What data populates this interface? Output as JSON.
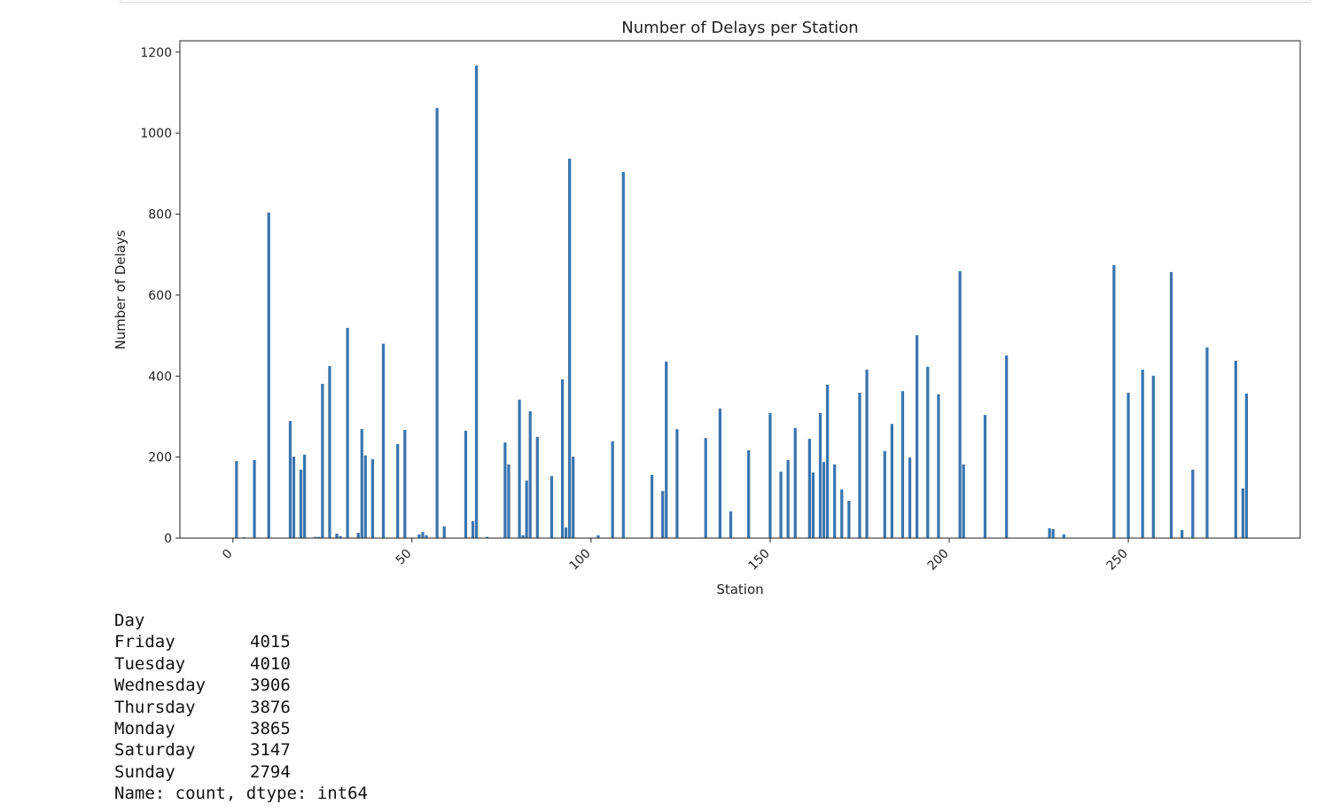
{
  "chart_data": {
    "type": "bar",
    "title": "Number of Delays per Station",
    "xlabel": "Station",
    "ylabel": "Number of Delays",
    "color": "#3a75af",
    "bar_width": 0.8,
    "x": [
      1,
      3,
      6,
      10,
      16,
      17,
      19,
      20,
      23,
      24,
      27,
      25,
      29,
      30,
      32,
      35,
      36,
      37,
      39,
      42,
      46,
      48,
      52,
      53,
      54,
      57,
      59,
      65,
      67,
      68,
      71,
      76,
      77,
      80,
      81,
      82,
      83,
      85,
      89,
      92,
      93,
      94,
      95,
      102,
      106,
      109,
      117,
      120,
      121,
      124,
      132,
      136,
      139,
      144,
      150,
      153,
      155,
      157,
      161,
      162,
      164,
      165,
      166,
      168,
      170,
      172,
      175,
      177,
      182,
      184,
      187,
      189,
      191,
      194,
      197,
      203,
      204,
      210,
      216,
      228,
      229,
      232,
      246,
      250,
      254,
      257,
      262,
      265,
      268,
      272,
      280,
      282,
      283
    ],
    "values": [
      190,
      2,
      193,
      804,
      289,
      201,
      169,
      206,
      3,
      3,
      425,
      381,
      11,
      5,
      519,
      13,
      269,
      204,
      195,
      480,
      232,
      267,
      9,
      15,
      7,
      1062,
      29,
      265,
      42,
      1167,
      3,
      236,
      182,
      342,
      7,
      142,
      313,
      250,
      153,
      392,
      26,
      937,
      201,
      7,
      239,
      904,
      156,
      116,
      436,
      269,
      247,
      320,
      66,
      217,
      309,
      164,
      193,
      272,
      245,
      162,
      309,
      188,
      379,
      182,
      120,
      92,
      359,
      416,
      215,
      282,
      363,
      199,
      501,
      423,
      355,
      659,
      182,
      304,
      451,
      24,
      22,
      9,
      674,
      359,
      416,
      401,
      657,
      20,
      169,
      471,
      438,
      123,
      357
    ],
    "xlim": [
      -14.8,
      298
    ],
    "ylim": [
      0,
      1228
    ],
    "xticks": [
      0,
      50,
      100,
      150,
      200,
      250
    ],
    "yticks": [
      0,
      200,
      400,
      600,
      800,
      1000,
      1200
    ]
  },
  "output": {
    "header": "Day",
    "rows": [
      [
        "Friday",
        4015
      ],
      [
        "Tuesday",
        4010
      ],
      [
        "Wednesday",
        3906
      ],
      [
        "Thursday",
        3876
      ],
      [
        "Monday",
        3865
      ],
      [
        "Saturday",
        3147
      ],
      [
        "Sunday",
        2794
      ]
    ],
    "footer": "Name: count, dtype: int64"
  }
}
